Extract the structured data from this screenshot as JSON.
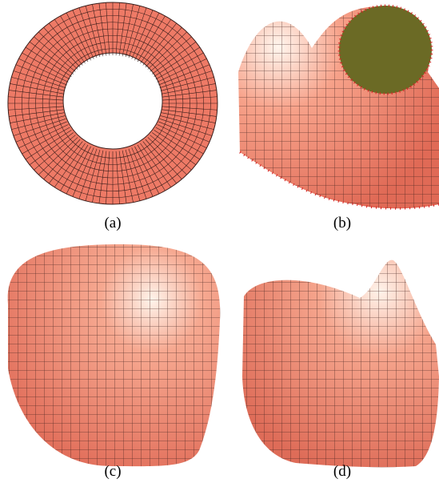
{
  "captions": [
    "(a)",
    "(b)",
    "(c)",
    "(d)"
  ]
}
